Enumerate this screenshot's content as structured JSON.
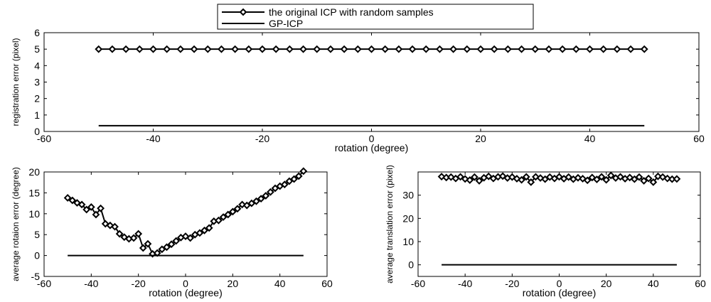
{
  "legend": {
    "entries": [
      {
        "label": "the original ICP with random samples",
        "marker": "diamond"
      },
      {
        "label": "GP-ICP",
        "marker": "none"
      }
    ],
    "placement": "top-center"
  },
  "chart_data": [
    {
      "id": "registration",
      "type": "line",
      "title": "",
      "xlabel": "rotation (degree)",
      "ylabel": "registration error (pixel)",
      "xlim": [
        -60,
        60
      ],
      "ylim": [
        0,
        6
      ],
      "xticks": [
        -60,
        -40,
        -20,
        0,
        20,
        40,
        60
      ],
      "yticks": [
        0,
        1,
        2,
        3,
        4,
        5,
        6
      ],
      "grid": false,
      "series": [
        {
          "name": "the original ICP with random samples",
          "marker": "diamond",
          "color": "#000000",
          "x": [
            -50,
            -47.5,
            -45,
            -42.5,
            -40,
            -37.5,
            -35,
            -32.5,
            -30,
            -27.5,
            -25,
            -22.5,
            -20,
            -17.5,
            -15,
            -12.5,
            -10,
            -7.5,
            -5,
            -2.5,
            0,
            2.5,
            5,
            7.5,
            10,
            12.5,
            15,
            17.5,
            20,
            22.5,
            25,
            27.5,
            30,
            32.5,
            35,
            37.5,
            40,
            42.5,
            45,
            47.5,
            50
          ],
          "y": [
            5,
            5,
            5,
            5,
            5,
            5,
            5,
            5,
            5,
            5,
            5,
            5,
            5,
            5,
            5,
            5,
            5,
            5,
            5,
            5,
            5,
            5,
            5,
            5,
            5,
            5,
            5,
            5,
            5,
            5,
            5,
            5,
            5,
            5,
            5,
            5,
            5,
            5,
            5,
            5,
            5
          ]
        },
        {
          "name": "GP-ICP",
          "marker": "none",
          "color": "#000000",
          "x": [
            -50,
            50
          ],
          "y": [
            0.35,
            0.35
          ]
        }
      ]
    },
    {
      "id": "rotation",
      "type": "line",
      "title": "",
      "xlabel": "rotation (degree)",
      "ylabel": "average rotaion error (degree)",
      "xlim": [
        -60,
        60
      ],
      "ylim": [
        -5,
        20
      ],
      "xticks": [
        -60,
        -40,
        -20,
        0,
        20,
        40,
        60
      ],
      "yticks": [
        -5,
        0,
        5,
        10,
        15,
        20
      ],
      "grid": false,
      "series": [
        {
          "name": "the original ICP with random samples",
          "marker": "diamond",
          "color": "#000000",
          "x": [
            -50,
            -48,
            -46,
            -44,
            -42,
            -40,
            -38,
            -36,
            -34,
            -32,
            -30,
            -28,
            -26,
            -24,
            -22,
            -20,
            -18,
            -16,
            -14,
            -12,
            -10,
            -8,
            -6,
            -4,
            -2,
            0,
            2,
            4,
            6,
            8,
            10,
            12,
            14,
            16,
            18,
            20,
            22,
            24,
            26,
            28,
            30,
            32,
            34,
            36,
            38,
            40,
            42,
            44,
            46,
            48,
            50
          ],
          "y": [
            13.8,
            13.2,
            12.6,
            12.2,
            11.0,
            11.6,
            9.8,
            11.3,
            7.6,
            7.2,
            6.9,
            5.2,
            4.4,
            4.0,
            4.2,
            5.2,
            1.8,
            2.8,
            0.4,
            0.6,
            1.5,
            2.0,
            2.7,
            3.5,
            4.3,
            4.6,
            4.2,
            5.0,
            5.4,
            6.0,
            6.6,
            8.2,
            8.4,
            9.2,
            9.8,
            10.5,
            11.2,
            12.2,
            12.0,
            12.5,
            13.0,
            13.6,
            14.3,
            15.2,
            16.1,
            16.6,
            17.0,
            17.8,
            18.3,
            19.0,
            20.2
          ]
        },
        {
          "name": "GP-ICP",
          "marker": "none",
          "color": "#000000",
          "x": [
            -50,
            50
          ],
          "y": [
            0,
            0
          ]
        }
      ]
    },
    {
      "id": "translation",
      "type": "line",
      "title": "",
      "xlabel": "rotation (degree)",
      "ylabel": "average translation error (pixel)",
      "xlim": [
        -60,
        60
      ],
      "ylim": [
        -5,
        40
      ],
      "xticks": [
        -60,
        -40,
        -20,
        0,
        20,
        40,
        60
      ],
      "yticks": [
        0,
        10,
        20,
        30
      ],
      "grid": false,
      "series": [
        {
          "name": "the original ICP with random samples",
          "marker": "diamond",
          "color": "#000000",
          "x": [
            -50,
            -48,
            -46,
            -44,
            -42,
            -40,
            -38,
            -36,
            -34,
            -32,
            -30,
            -28,
            -26,
            -24,
            -22,
            -20,
            -18,
            -16,
            -14,
            -12,
            -10,
            -8,
            -6,
            -4,
            -2,
            0,
            2,
            4,
            6,
            8,
            10,
            12,
            14,
            16,
            18,
            20,
            22,
            24,
            26,
            28,
            30,
            32,
            34,
            36,
            38,
            40,
            42,
            44,
            46,
            48,
            50
          ],
          "y": [
            38,
            37.6,
            37.8,
            37.2,
            37.9,
            37,
            36.5,
            37.8,
            36.2,
            37.5,
            38.1,
            37.2,
            37.9,
            38.2,
            37.4,
            37.8,
            37.1,
            36.6,
            37.9,
            35.6,
            37.9,
            37.4,
            36.9,
            37.8,
            37.2,
            37.9,
            37.1,
            37.8,
            36.9,
            37.5,
            37.1,
            36.4,
            37.6,
            36.8,
            37.9,
            36.6,
            38.5,
            37.4,
            37.9,
            37.1,
            37.6,
            36.9,
            37.8,
            36.2,
            37.2,
            35.6,
            38.1,
            37.8,
            37.2,
            36.9,
            37.0
          ]
        },
        {
          "name": "GP-ICP",
          "marker": "none",
          "color": "#000000",
          "x": [
            -50,
            50
          ],
          "y": [
            0,
            0
          ]
        }
      ]
    }
  ]
}
